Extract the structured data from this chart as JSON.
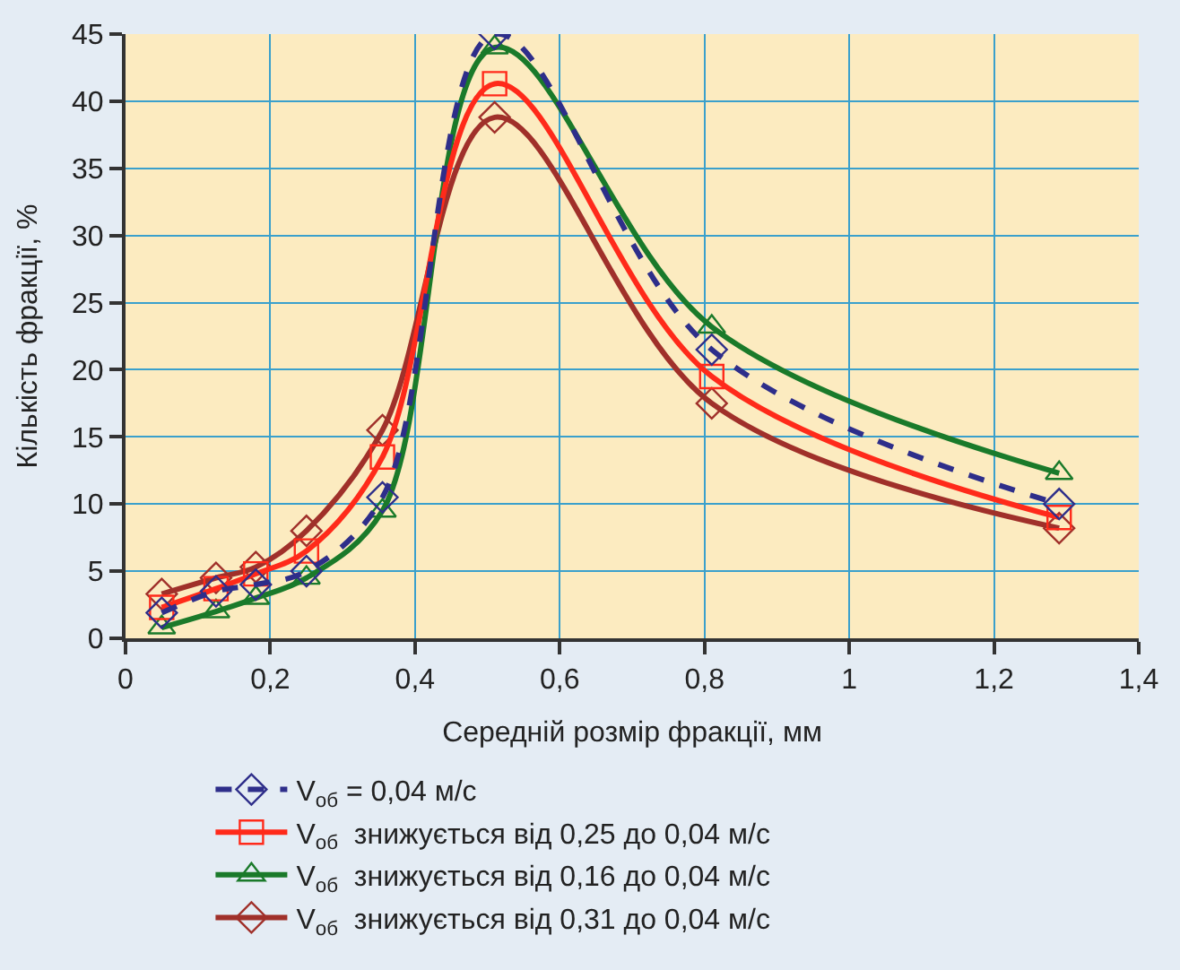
{
  "chart_data": {
    "type": "line",
    "xlabel": "Середній розмір фракції, мм",
    "ylabel": "Кількість фракції, %",
    "x": [
      0.05,
      0.125,
      0.18,
      0.25,
      0.355,
      0.51,
      0.81,
      1.29
    ],
    "series": [
      {
        "name": "V$_{об}$ = 0,04 м/с",
        "color": "#2e2e8a",
        "marker": "diamond",
        "line_style": "dashed",
        "values": [
          1.9,
          3.5,
          4.0,
          5.0,
          10.5,
          45,
          21.5,
          10
        ]
      },
      {
        "name": "V$_{об}$  знижується від 0,25 до 0,04 м/с",
        "color": "#ff2a1a",
        "marker": "square",
        "line_style": "solid",
        "values": [
          2.3,
          3.7,
          4.8,
          6.5,
          13.5,
          41.3,
          19.5,
          9.0
        ]
      },
      {
        "name": "V$_{об}$  знижується від 0,16 до 0,04 м/с",
        "color": "#1a7a2a",
        "marker": "triangle",
        "line_style": "solid",
        "values": [
          0.8,
          2.0,
          3.0,
          4.5,
          9.5,
          44,
          23.2,
          12.3
        ]
      },
      {
        "name": "V$_{об}$  знижується від 0,31 до 0,04 м/с",
        "color": "#a0302a",
        "marker": "diamond",
        "line_style": "solid",
        "values": [
          3.3,
          4.5,
          5.3,
          8.0,
          15.5,
          38.8,
          17.5,
          8.2
        ]
      }
    ],
    "xlim": [
      0,
      1.4
    ],
    "xticks": [
      {
        "value": 0,
        "label": "0"
      },
      {
        "value": 0.2,
        "label": "0,2"
      },
      {
        "value": 0.4,
        "label": "0,4"
      },
      {
        "value": 0.6,
        "label": "0,6"
      },
      {
        "value": 0.8,
        "label": "0,8"
      },
      {
        "value": 1,
        "label": "1"
      },
      {
        "value": 1.2,
        "label": "1,2"
      },
      {
        "value": 1.4,
        "label": "1,4"
      }
    ],
    "ylim": [
      0,
      45
    ],
    "yticks": [
      0,
      5,
      10,
      15,
      20,
      25,
      30,
      35,
      40,
      45
    ],
    "grid": true,
    "legend": "bottom"
  }
}
